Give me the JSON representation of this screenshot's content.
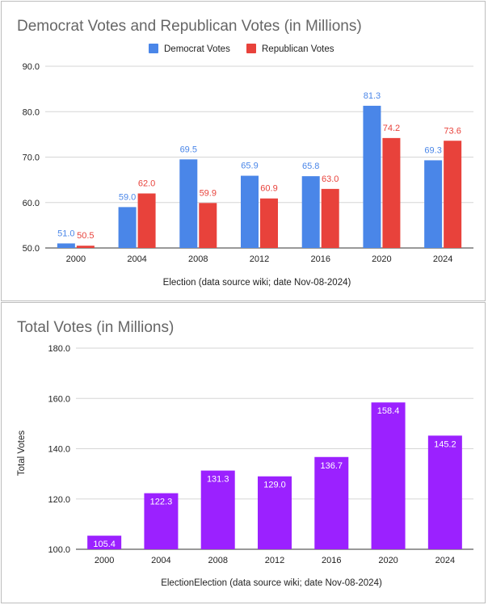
{
  "chart_data": [
    {
      "type": "bar",
      "title": "Democrat Votes and Republican Votes (in Millions)",
      "xlabel": "Election (data source wiki; date Nov-08-2024)",
      "ylabel": "",
      "categories": [
        "2000",
        "2004",
        "2008",
        "2012",
        "2016",
        "2020",
        "2024"
      ],
      "series": [
        {
          "name": "Democrat Votes",
          "values": [
            51.0,
            59.0,
            69.5,
            65.9,
            65.8,
            81.3,
            69.3
          ],
          "color": "#4a86e8",
          "labels": [
            "51.0",
            "59.0",
            "69.5",
            "65.9",
            "65.8",
            "81.3",
            "69.3"
          ]
        },
        {
          "name": "Republican Votes",
          "values": [
            50.5,
            62.0,
            59.9,
            60.9,
            63.0,
            74.2,
            73.6
          ],
          "color": "#e8423b",
          "labels": [
            "50.5",
            "62.0",
            "59.9",
            "60.9",
            "63.0",
            "74.2",
            "73.6"
          ]
        }
      ],
      "ylim": [
        50,
        90
      ],
      "yticks": [
        "50.0",
        "60.0",
        "70.0",
        "80.0",
        "90.0"
      ],
      "ytick_values": [
        50,
        60,
        70,
        80,
        90
      ],
      "grid": true,
      "legend": "top"
    },
    {
      "type": "bar",
      "title": "Total Votes (in Millions)",
      "xlabel": "ElectionElection (data source wiki; date Nov-08-2024)",
      "ylabel": "Total Votes",
      "categories": [
        "2000",
        "2004",
        "2008",
        "2012",
        "2016",
        "2020",
        "2024"
      ],
      "series": [
        {
          "name": "",
          "values": [
            105.4,
            122.3,
            131.3,
            129.0,
            136.7,
            158.4,
            145.2
          ],
          "color": "#9b21ff",
          "labels": [
            "105.4",
            "122.3",
            "131.3",
            "129.0",
            "136.7",
            "158.4",
            "145.2"
          ]
        }
      ],
      "ylim": [
        100,
        180
      ],
      "yticks": [
        "100.0",
        "120.0",
        "140.0",
        "160.0",
        "180.0"
      ],
      "ytick_values": [
        100,
        120,
        140,
        160,
        180
      ],
      "grid": true,
      "legend": "none"
    }
  ]
}
